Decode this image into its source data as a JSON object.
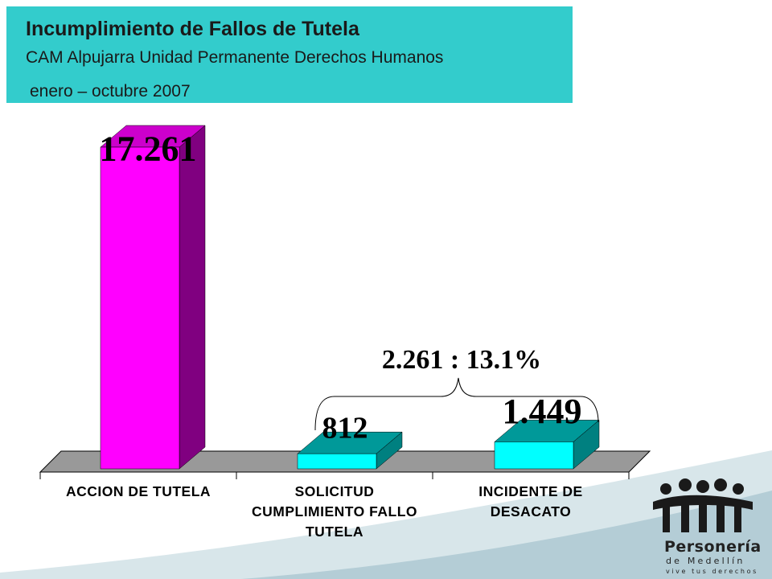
{
  "header": {
    "title": "Incumplimiento de Fallos de Tutela",
    "subtitle": "CAM Alpujarra Unidad Permanente Derechos Humanos",
    "period": "enero – octubre 2007"
  },
  "chart_data": {
    "type": "bar",
    "title": "Incumplimiento de Fallos de Tutela",
    "categories": [
      "ACCION DE TUTELA",
      "SOLICITUD CUMPLIMIENTO FALLO TUTELA",
      "INCIDENTE DE DESACATO"
    ],
    "category_lines": [
      [
        "ACCION DE TUTELA"
      ],
      [
        "SOLICITUD",
        "CUMPLIMIENTO FALLO",
        "TUTELA"
      ],
      [
        "INCIDENTE DE",
        "DESACATO"
      ]
    ],
    "values": [
      17261,
      812,
      1449
    ],
    "value_labels": [
      "17.261",
      "812",
      "1.449"
    ],
    "ylim": [
      0,
      17261
    ],
    "grid": false,
    "annotation": "2.261 : 13.1%",
    "colors": {
      "bars": [
        "#ff00ff",
        "#00ffff",
        "#00ffff"
      ],
      "bar_sides": [
        "#800080",
        "#008080",
        "#008080"
      ],
      "bar_tops": [
        "#cc00cc",
        "#009999",
        "#009999"
      ],
      "floor": "#999999"
    }
  },
  "logo": {
    "name": "Personería",
    "sub": "de Medellín",
    "tagline": "vive tus derechos"
  },
  "colors": {
    "title_bg": "#33cccc",
    "wave_light": "#d8e6ea",
    "wave_dark": "#b4cdd6"
  }
}
